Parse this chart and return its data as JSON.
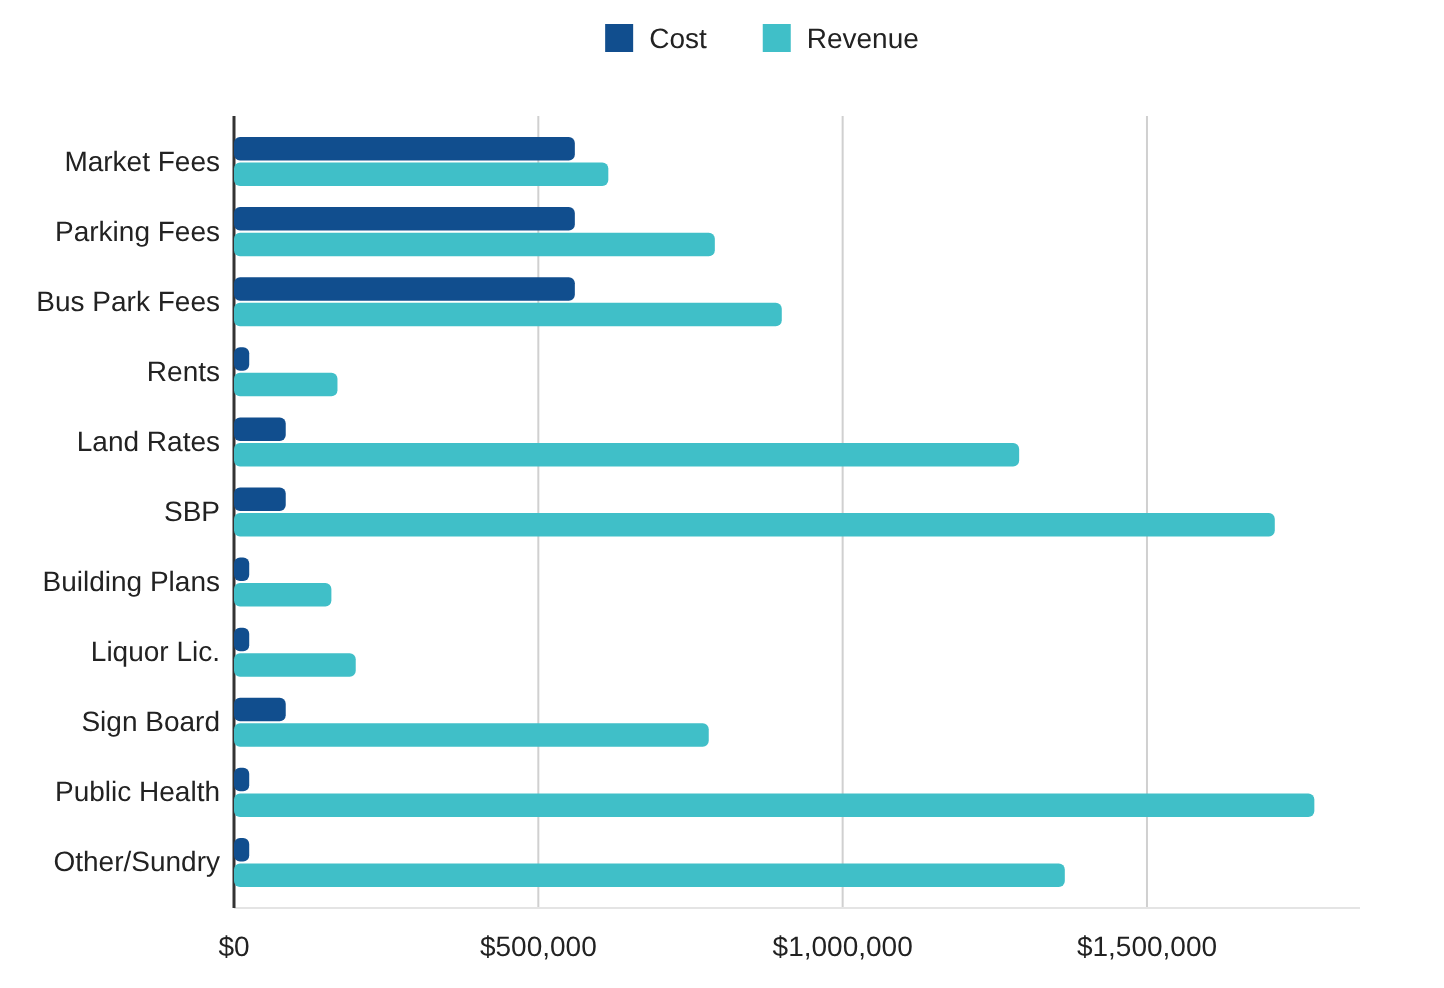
{
  "chart_data": {
    "type": "bar",
    "orientation": "horizontal",
    "categories": [
      "Market Fees",
      "Parking Fees",
      "Bus Park Fees",
      "Rents",
      "Land Rates",
      "SBP",
      "Building Plans",
      "Liquor Lic.",
      "Sign Board",
      "Public Health",
      "Other/Sundry"
    ],
    "series": [
      {
        "name": "Cost",
        "color": "#114e8e",
        "values": [
          560000,
          560000,
          560000,
          25000,
          85000,
          85000,
          25000,
          25000,
          85000,
          25000,
          25000
        ]
      },
      {
        "name": "Revenue",
        "color": "#40bfc8",
        "values": [
          615000,
          790000,
          900000,
          170000,
          1290000,
          1710000,
          160000,
          200000,
          780000,
          1775000,
          1365000
        ]
      }
    ],
    "xlim": [
      0,
      1850000
    ],
    "xticks": [
      {
        "value": 0,
        "label": "$0"
      },
      {
        "value": 500000,
        "label": "$500,000"
      },
      {
        "value": 1000000,
        "label": "$1,000,000"
      },
      {
        "value": 1500000,
        "label": "$1,500,000"
      }
    ],
    "grid": "x",
    "legend": "top"
  }
}
